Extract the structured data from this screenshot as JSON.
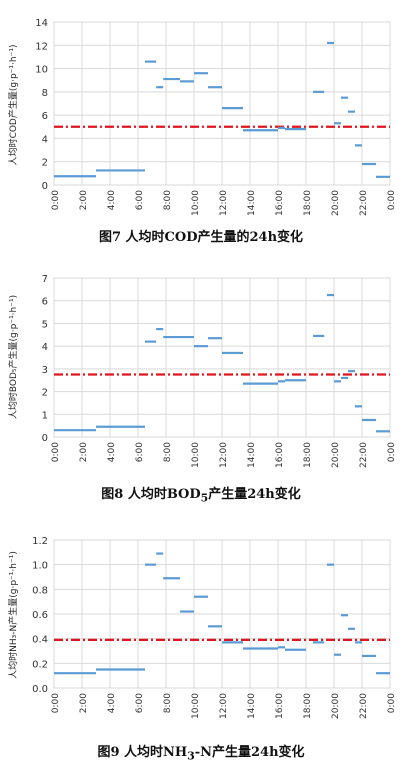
{
  "chart_data": [
    {
      "type": "line",
      "caption": "图7 人均时COD产生量的24h变化",
      "ylabel": "人均时COD产生量(g·p⁻¹·h⁻¹)",
      "ylim": [
        0,
        14
      ],
      "yticks": [
        "0",
        "2",
        "4",
        "6",
        "8",
        "10",
        "12",
        "14"
      ],
      "xticks": [
        "0:00",
        "2:00",
        "4:00",
        "6:00",
        "8:00",
        "10:00",
        "12:00",
        "14:00",
        "16:00",
        "18:00",
        "20:00",
        "22:00",
        "0:00"
      ],
      "grid": true,
      "reference_line": 5.0,
      "segments": [
        {
          "x0": 0.0,
          "x1": 3.0,
          "y": 0.75
        },
        {
          "x0": 3.0,
          "x1": 6.5,
          "y": 1.25
        },
        {
          "x0": 6.5,
          "x1": 7.3,
          "y": 10.6
        },
        {
          "x0": 7.3,
          "x1": 7.8,
          "y": 8.4
        },
        {
          "x0": 7.8,
          "x1": 9.0,
          "y": 9.1
        },
        {
          "x0": 9.0,
          "x1": 10.0,
          "y": 8.9
        },
        {
          "x0": 10.0,
          "x1": 11.0,
          "y": 9.6
        },
        {
          "x0": 11.0,
          "x1": 12.0,
          "y": 8.4
        },
        {
          "x0": 12.0,
          "x1": 13.5,
          "y": 6.6
        },
        {
          "x0": 13.5,
          "x1": 16.0,
          "y": 4.7
        },
        {
          "x0": 16.0,
          "x1": 16.5,
          "y": 4.9
        },
        {
          "x0": 16.5,
          "x1": 18.0,
          "y": 4.8
        },
        {
          "x0": 18.5,
          "x1": 19.3,
          "y": 8.0
        },
        {
          "x0": 19.5,
          "x1": 20.0,
          "y": 12.2
        },
        {
          "x0": 20.0,
          "x1": 20.5,
          "y": 5.3
        },
        {
          "x0": 20.5,
          "x1": 21.0,
          "y": 7.5
        },
        {
          "x0": 21.0,
          "x1": 21.5,
          "y": 6.3
        },
        {
          "x0": 21.5,
          "x1": 22.0,
          "y": 3.4
        },
        {
          "x0": 22.0,
          "x1": 23.0,
          "y": 1.8
        },
        {
          "x0": 23.0,
          "x1": 24.0,
          "y": 0.7
        }
      ]
    },
    {
      "type": "line",
      "caption_main": "图8 人均时BOD",
      "caption_sub": "5",
      "caption_tail": "产生量24h变化",
      "ylabel": "人均时BOD₅产生量(g·p⁻¹·h⁻¹)",
      "ylim": [
        0,
        7
      ],
      "yticks": [
        "0",
        "1",
        "2",
        "3",
        "4",
        "5",
        "6",
        "7"
      ],
      "xticks": [
        "0:00",
        "2:00",
        "4:00",
        "6:00",
        "8:00",
        "10:00",
        "12:00",
        "14:00",
        "16:00",
        "18:00",
        "20:00",
        "22:00",
        "0:00"
      ],
      "grid": true,
      "reference_line": 2.75,
      "segments": [
        {
          "x0": 0.0,
          "x1": 3.0,
          "y": 0.3
        },
        {
          "x0": 3.0,
          "x1": 6.5,
          "y": 0.45
        },
        {
          "x0": 6.5,
          "x1": 7.3,
          "y": 4.2
        },
        {
          "x0": 7.3,
          "x1": 7.8,
          "y": 4.75
        },
        {
          "x0": 7.8,
          "x1": 10.0,
          "y": 4.4
        },
        {
          "x0": 10.0,
          "x1": 11.0,
          "y": 4.0
        },
        {
          "x0": 11.0,
          "x1": 12.0,
          "y": 4.35
        },
        {
          "x0": 12.0,
          "x1": 13.5,
          "y": 3.7
        },
        {
          "x0": 13.5,
          "x1": 16.0,
          "y": 2.35
        },
        {
          "x0": 16.0,
          "x1": 16.5,
          "y": 2.45
        },
        {
          "x0": 16.5,
          "x1": 18.0,
          "y": 2.5
        },
        {
          "x0": 18.5,
          "x1": 19.3,
          "y": 4.45
        },
        {
          "x0": 19.5,
          "x1": 20.0,
          "y": 6.25
        },
        {
          "x0": 20.0,
          "x1": 20.5,
          "y": 2.45
        },
        {
          "x0": 20.5,
          "x1": 21.0,
          "y": 2.6
        },
        {
          "x0": 21.0,
          "x1": 21.5,
          "y": 2.9
        },
        {
          "x0": 21.5,
          "x1": 22.0,
          "y": 1.35
        },
        {
          "x0": 22.0,
          "x1": 23.0,
          "y": 0.75
        },
        {
          "x0": 23.0,
          "x1": 24.0,
          "y": 0.25
        }
      ]
    },
    {
      "type": "line",
      "caption_main": "图9 人均时NH",
      "caption_sub": "3",
      "caption_tail": "-N产生量24h变化",
      "ylabel": "人均时NH₃-N产生量(g·p⁻¹·h⁻¹)",
      "ylim": [
        0,
        1.2
      ],
      "yticks": [
        "0.0",
        "0.2",
        "0.4",
        "0.6",
        "0.8",
        "1.0",
        "1.2"
      ],
      "xticks": [
        "0:00",
        "2:00",
        "4:00",
        "6:00",
        "8:00",
        "10:00",
        "12:00",
        "14:00",
        "16:00",
        "18:00",
        "20:00",
        "22:00",
        "0:00"
      ],
      "grid": true,
      "reference_line": 0.39,
      "segments": [
        {
          "x0": 0.0,
          "x1": 3.0,
          "y": 0.12
        },
        {
          "x0": 3.0,
          "x1": 6.5,
          "y": 0.15
        },
        {
          "x0": 6.5,
          "x1": 7.3,
          "y": 1.0
        },
        {
          "x0": 7.3,
          "x1": 7.8,
          "y": 1.09
        },
        {
          "x0": 7.8,
          "x1": 9.0,
          "y": 0.89
        },
        {
          "x0": 9.0,
          "x1": 10.0,
          "y": 0.62
        },
        {
          "x0": 10.0,
          "x1": 11.0,
          "y": 0.74
        },
        {
          "x0": 11.0,
          "x1": 12.0,
          "y": 0.5
        },
        {
          "x0": 12.0,
          "x1": 13.5,
          "y": 0.37
        },
        {
          "x0": 13.5,
          "x1": 16.0,
          "y": 0.32
        },
        {
          "x0": 16.0,
          "x1": 16.5,
          "y": 0.33
        },
        {
          "x0": 16.5,
          "x1": 18.0,
          "y": 0.31
        },
        {
          "x0": 18.5,
          "x1": 19.3,
          "y": 0.37
        },
        {
          "x0": 19.5,
          "x1": 20.0,
          "y": 1.0
        },
        {
          "x0": 20.0,
          "x1": 20.5,
          "y": 0.27
        },
        {
          "x0": 20.5,
          "x1": 21.0,
          "y": 0.59
        },
        {
          "x0": 21.0,
          "x1": 21.5,
          "y": 0.48
        },
        {
          "x0": 21.5,
          "x1": 22.0,
          "y": 0.37
        },
        {
          "x0": 22.0,
          "x1": 23.0,
          "y": 0.26
        },
        {
          "x0": 23.0,
          "x1": 24.0,
          "y": 0.12
        }
      ]
    }
  ],
  "colors": {
    "segment": "#5b9bd5",
    "reference": "#e0141e",
    "grid": "#d9d9d9",
    "axis": "#bfbfbf"
  }
}
